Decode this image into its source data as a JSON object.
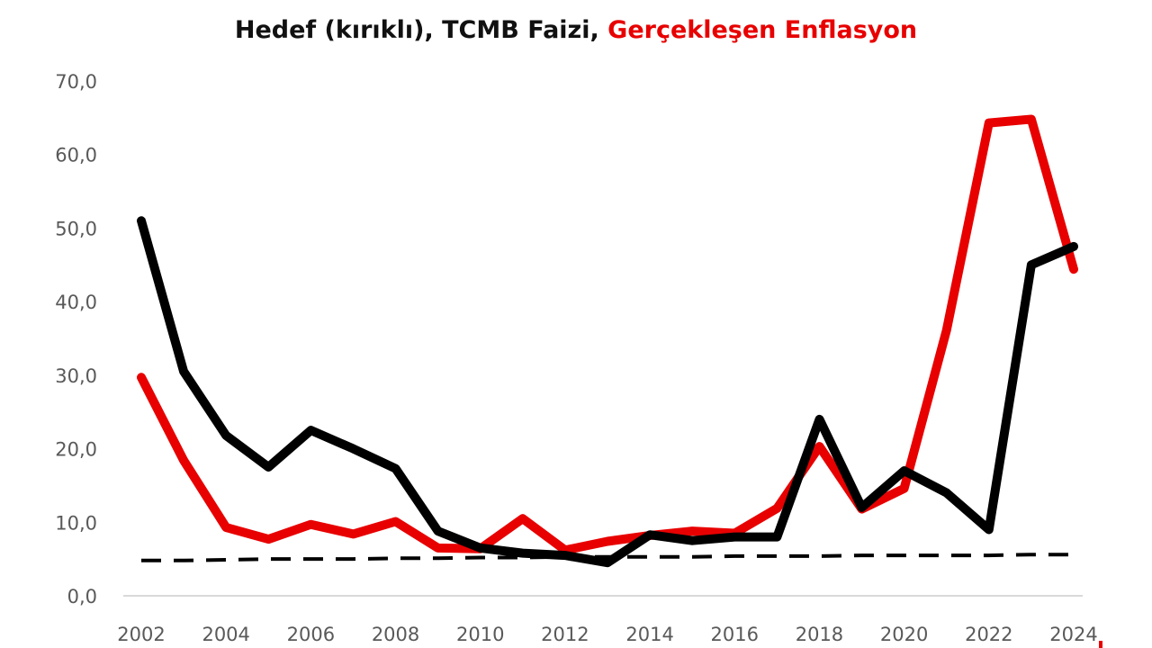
{
  "chart_data": {
    "type": "line",
    "title_parts": {
      "black": "Hedef (kırıklı), TCMB Faizi, ",
      "red": "Gerçekleşen Enflasyon"
    },
    "x": [
      2002,
      2003,
      2004,
      2005,
      2006,
      2007,
      2008,
      2009,
      2010,
      2011,
      2012,
      2013,
      2014,
      2015,
      2016,
      2017,
      2018,
      2019,
      2020,
      2021,
      2022,
      2023,
      2024
    ],
    "xticks": [
      "2002",
      "2004",
      "2006",
      "2008",
      "2010",
      "2012",
      "2014",
      "2016",
      "2018",
      "2020",
      "2022",
      "2024"
    ],
    "yticks": [
      "0,0",
      "10,0",
      "20,0",
      "30,0",
      "40,0",
      "50,0",
      "60,0",
      "70,0"
    ],
    "ylim": [
      0,
      70
    ],
    "xlim": [
      2002,
      2024
    ],
    "grid": false,
    "series": [
      {
        "key": "enflasyon",
        "color": "#e80000",
        "style": "solid",
        "values": [
          29.7,
          18.4,
          9.3,
          7.7,
          9.7,
          8.4,
          10.1,
          6.5,
          6.4,
          10.5,
          6.2,
          7.4,
          8.2,
          8.8,
          8.5,
          11.9,
          20.3,
          11.8,
          14.6,
          36.1,
          64.3,
          64.8,
          44.4
        ]
      },
      {
        "key": "faiz",
        "color": "#000000",
        "style": "solid",
        "values": [
          51.0,
          30.5,
          21.8,
          17.5,
          22.5,
          20.0,
          17.3,
          8.8,
          6.5,
          5.8,
          5.5,
          4.5,
          8.3,
          7.5,
          8.0,
          8.0,
          24.0,
          12.0,
          17.0,
          14.0,
          9.0,
          45.0,
          47.5
        ]
      },
      {
        "key": "hedef",
        "color": "#000000",
        "style": "dashed",
        "values": [
          4.8,
          4.8,
          4.9,
          5.0,
          5.0,
          5.0,
          5.1,
          5.1,
          5.2,
          5.2,
          5.3,
          5.3,
          5.3,
          5.3,
          5.4,
          5.4,
          5.4,
          5.5,
          5.5,
          5.5,
          5.5,
          5.6,
          5.6
        ]
      }
    ]
  }
}
